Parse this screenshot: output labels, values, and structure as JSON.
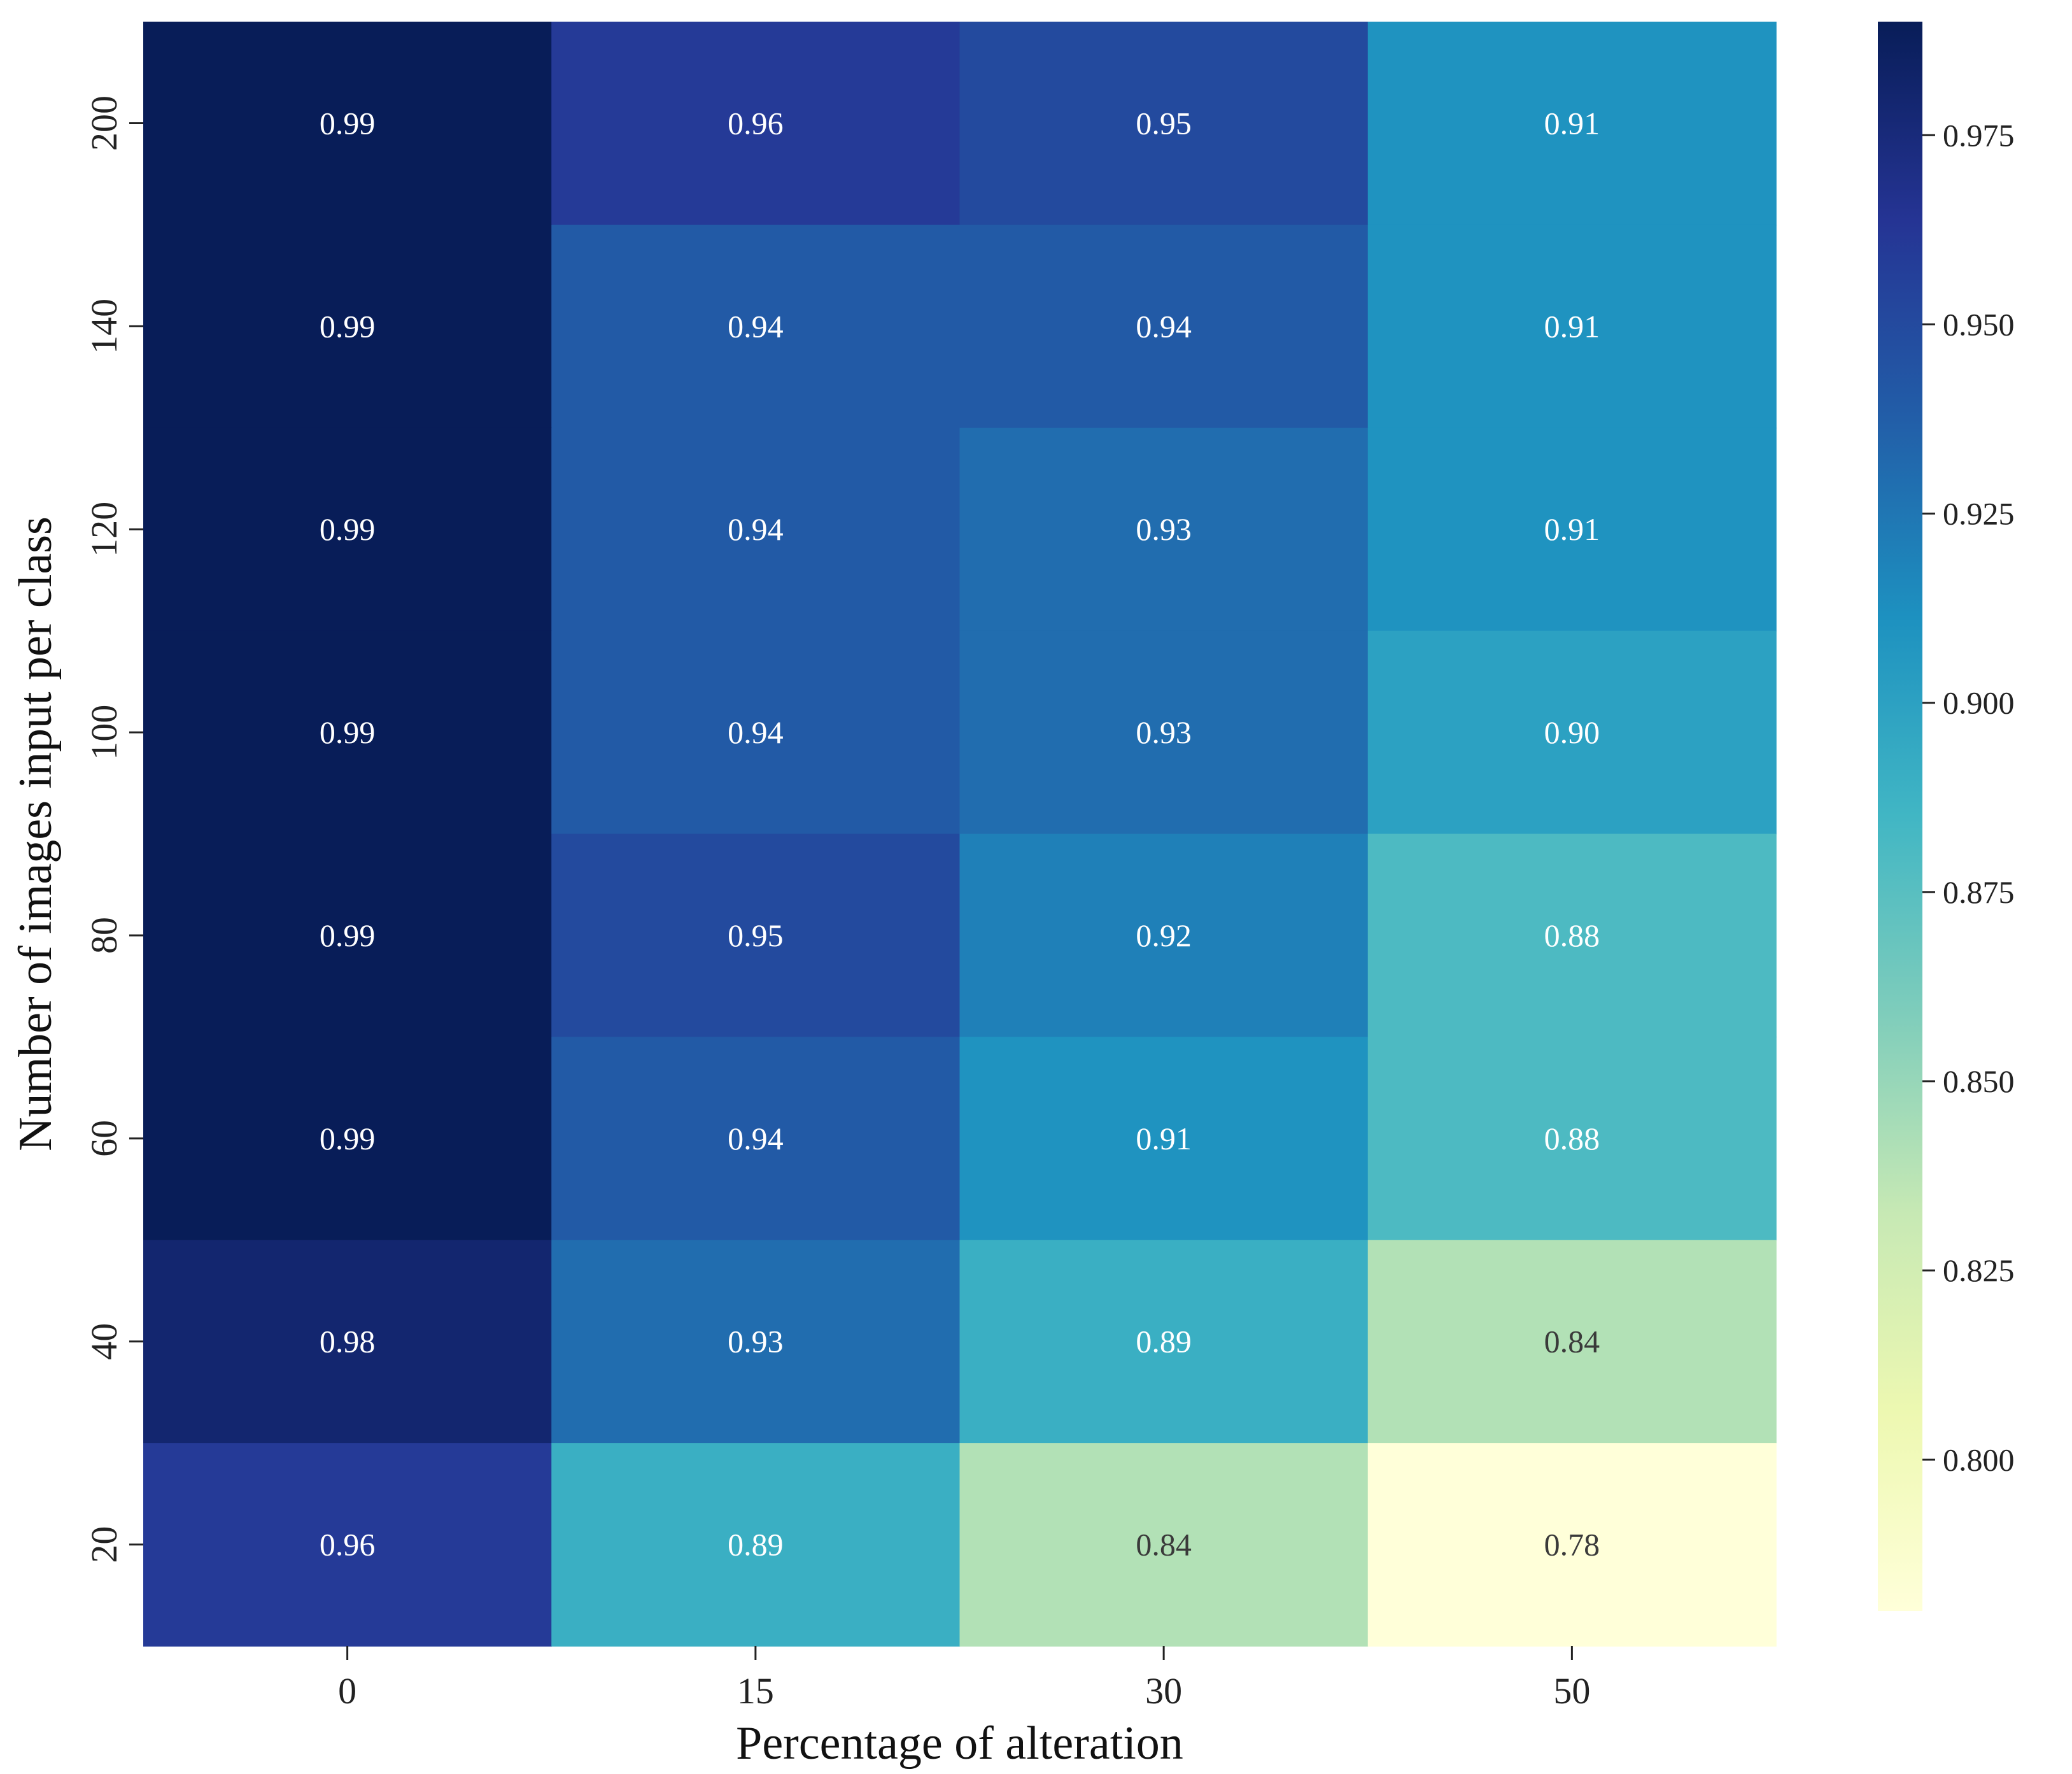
{
  "chart_data": {
    "type": "heatmap",
    "title": "",
    "xlabel": "Percentage of alteration",
    "ylabel": "Number of images input per class",
    "x_categories": [
      "0",
      "15",
      "30",
      "50"
    ],
    "y_categories": [
      "200",
      "140",
      "120",
      "100",
      "80",
      "60",
      "40",
      "20"
    ],
    "values": [
      [
        0.99,
        0.96,
        0.95,
        0.91
      ],
      [
        0.99,
        0.94,
        0.94,
        0.91
      ],
      [
        0.99,
        0.94,
        0.93,
        0.91
      ],
      [
        0.99,
        0.94,
        0.93,
        0.9
      ],
      [
        0.99,
        0.95,
        0.92,
        0.88
      ],
      [
        0.99,
        0.94,
        0.91,
        0.88
      ],
      [
        0.98,
        0.93,
        0.89,
        0.84
      ],
      [
        0.96,
        0.89,
        0.84,
        0.78
      ]
    ],
    "colorbar": {
      "range": [
        0.78,
        0.99
      ],
      "ticks": [
        0.8,
        0.825,
        0.85,
        0.875,
        0.9,
        0.925,
        0.95,
        0.975
      ],
      "tick_labels": [
        "0.800",
        "0.825",
        "0.850",
        "0.875",
        "0.900",
        "0.925",
        "0.950",
        "0.975"
      ],
      "colormap": "YlGnBu"
    },
    "annotation_colors": {
      "light": "#ffffff",
      "dark": "#3a3a3a"
    }
  }
}
